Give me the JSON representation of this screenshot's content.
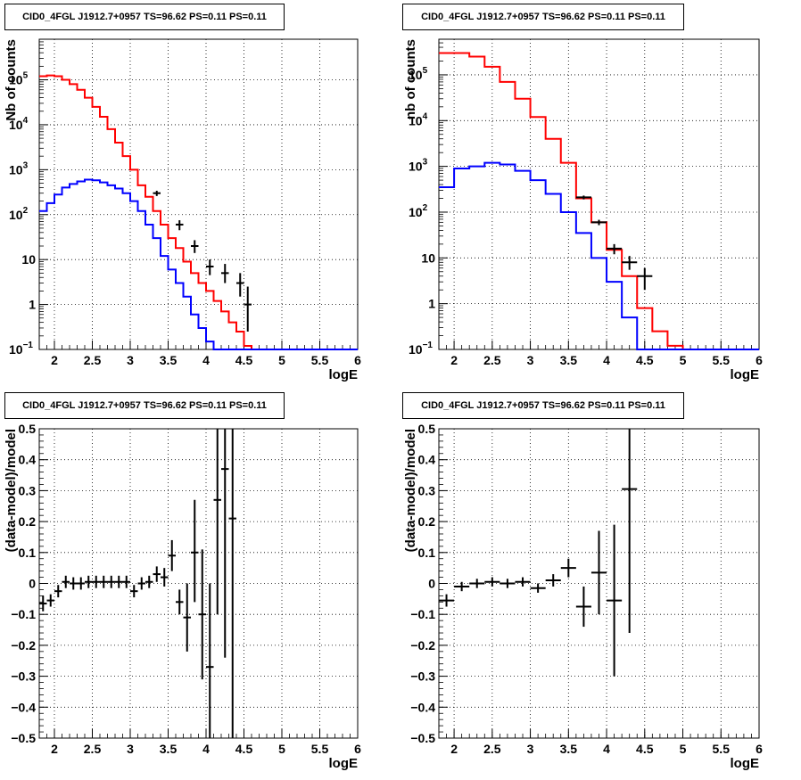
{
  "chart_data": [
    {
      "type": "line",
      "title": "CID0_4FGL J1912.7+0957 TS=96.62 PS=0.11 PS=0.11",
      "xlabel": "logE",
      "ylabel": "Nb of counts",
      "yscale": "log",
      "xlim": [
        1.8,
        6.0
      ],
      "ylim": [
        0.1,
        800000
      ],
      "grid": true,
      "xticks": [
        "2",
        "2.5",
        "3",
        "3.5",
        "4",
        "4.5",
        "5",
        "5.5",
        "6"
      ],
      "yticks": [
        {
          "v": 0.1,
          "label": "10",
          "sup": "−1"
        },
        {
          "v": 1,
          "label": "1",
          "sup": ""
        },
        {
          "v": 10,
          "label": "10",
          "sup": ""
        },
        {
          "v": 100,
          "label": "10",
          "sup": "2"
        },
        {
          "v": 1000,
          "label": "10",
          "sup": "3"
        },
        {
          "v": 10000,
          "label": "10",
          "sup": "4"
        },
        {
          "v": 100000,
          "label": "10",
          "sup": "5"
        }
      ],
      "series": [
        {
          "color": "#ff0000",
          "edges": [
            1.8,
            1.9,
            2.0,
            2.1,
            2.2,
            2.3,
            2.4,
            2.5,
            2.6,
            2.7,
            2.8,
            2.9,
            3.0,
            3.1,
            3.2,
            3.3,
            3.4,
            3.5,
            3.6,
            3.7,
            3.8,
            3.9,
            4.0,
            4.1,
            4.2,
            4.3,
            4.4,
            4.5,
            4.6,
            4.7,
            4.8,
            4.9,
            5.0,
            5.2,
            6.0
          ],
          "values": [
            120000,
            125000,
            120000,
            100000,
            80000,
            60000,
            40000,
            25000,
            15000,
            8000,
            4000,
            2000,
            1000,
            450,
            250,
            120,
            60,
            30,
            18,
            9,
            5,
            3,
            2,
            1.2,
            0.7,
            0.4,
            0.25,
            0.12,
            0.08,
            0.08,
            0.08,
            0.08,
            0.08,
            0.08
          ]
        },
        {
          "color": "#0000ff",
          "edges": [
            1.8,
            1.9,
            2.0,
            2.1,
            2.2,
            2.3,
            2.4,
            2.5,
            2.6,
            2.7,
            2.8,
            2.9,
            3.0,
            3.1,
            3.2,
            3.3,
            3.4,
            3.5,
            3.6,
            3.7,
            3.8,
            3.9,
            4.0,
            4.1,
            4.2,
            4.3,
            4.4,
            4.5,
            6.0
          ],
          "values": [
            120,
            180,
            280,
            400,
            480,
            550,
            600,
            580,
            520,
            450,
            380,
            300,
            200,
            120,
            60,
            30,
            12,
            6,
            3,
            1.5,
            0.6,
            0.3,
            0.15,
            0.08,
            0.08,
            0.08,
            0.08,
            0.08
          ]
        }
      ],
      "points": [
        {
          "x": 3.35,
          "y": 300,
          "ex": 0.05,
          "lo": 260,
          "hi": 340
        },
        {
          "x": 3.65,
          "y": 60,
          "ex": 0.05,
          "lo": 45,
          "hi": 75
        },
        {
          "x": 3.85,
          "y": 20,
          "ex": 0.05,
          "lo": 14,
          "hi": 27
        },
        {
          "x": 4.05,
          "y": 7,
          "ex": 0.05,
          "lo": 4.5,
          "hi": 10
        },
        {
          "x": 4.25,
          "y": 5,
          "ex": 0.05,
          "lo": 3,
          "hi": 8
        },
        {
          "x": 4.45,
          "y": 3,
          "ex": 0.05,
          "lo": 1.5,
          "hi": 5
        },
        {
          "x": 4.55,
          "y": 1,
          "ex": 0.05,
          "lo": 0.25,
          "hi": 2.5
        }
      ]
    },
    {
      "type": "line",
      "title": "CID0_4FGL J1912.7+0957 TS=96.62 PS=0.11 PS=0.11",
      "xlabel": "logE",
      "ylabel": "nb of counts",
      "yscale": "log",
      "xlim": [
        1.8,
        6.0
      ],
      "ylim": [
        0.1,
        600000
      ],
      "grid": true,
      "xticks": [
        "2",
        "2.5",
        "3",
        "3.5",
        "4",
        "4.5",
        "5",
        "5.5",
        "6"
      ],
      "yticks": [
        {
          "v": 0.1,
          "label": "10",
          "sup": "−1"
        },
        {
          "v": 1,
          "label": "1",
          "sup": ""
        },
        {
          "v": 10,
          "label": "10",
          "sup": ""
        },
        {
          "v": 100,
          "label": "10",
          "sup": "2"
        },
        {
          "v": 1000,
          "label": "10",
          "sup": "3"
        },
        {
          "v": 10000,
          "label": "10",
          "sup": "4"
        },
        {
          "v": 100000,
          "label": "10",
          "sup": "5"
        }
      ],
      "series": [
        {
          "color": "#ff0000",
          "edges": [
            1.8,
            2.2,
            2.4,
            2.6,
            2.8,
            3.0,
            3.2,
            3.4,
            3.6,
            3.8,
            4.0,
            4.2,
            4.4,
            4.6,
            4.8,
            5.0,
            5.2,
            5.4,
            6.0
          ],
          "values": [
            300000,
            250000,
            150000,
            70000,
            30000,
            12000,
            4000,
            1200,
            200,
            60,
            15,
            4,
            0.8,
            0.25,
            0.12,
            0.1,
            0.08,
            0.08
          ]
        },
        {
          "color": "#0000ff",
          "edges": [
            1.8,
            2.0,
            2.2,
            2.4,
            2.6,
            2.8,
            3.0,
            3.2,
            3.4,
            3.6,
            3.8,
            4.0,
            4.2,
            4.4,
            6.0
          ],
          "values": [
            350,
            900,
            1000,
            1200,
            1100,
            800,
            500,
            250,
            100,
            35,
            10,
            3,
            0.5,
            0.08
          ]
        }
      ],
      "points": [
        {
          "x": 3.7,
          "y": 210,
          "ex": 0.1,
          "lo": 190,
          "hi": 230
        },
        {
          "x": 3.9,
          "y": 60,
          "ex": 0.1,
          "lo": 52,
          "hi": 68
        },
        {
          "x": 4.1,
          "y": 16,
          "ex": 0.1,
          "lo": 12,
          "hi": 20
        },
        {
          "x": 4.3,
          "y": 8,
          "ex": 0.1,
          "lo": 5.5,
          "hi": 11
        },
        {
          "x": 4.5,
          "y": 4,
          "ex": 0.1,
          "lo": 2,
          "hi": 6
        }
      ]
    },
    {
      "type": "scatter",
      "title": "CID0_4FGL J1912.7+0957 TS=96.62 PS=0.11 PS=0.11",
      "xlabel": "logE",
      "ylabel": "(data-model)/model",
      "yscale": "linear",
      "xlim": [
        1.8,
        6.0
      ],
      "ylim": [
        -0.5,
        0.5
      ],
      "grid": true,
      "xticks": [
        "2",
        "2.5",
        "3",
        "3.5",
        "4",
        "4.5",
        "5",
        "5.5",
        "6"
      ],
      "yticks": [
        {
          "v": -0.5,
          "label": "−0.5",
          "sup": ""
        },
        {
          "v": -0.4,
          "label": "−0.4",
          "sup": ""
        },
        {
          "v": -0.3,
          "label": "−0.3",
          "sup": ""
        },
        {
          "v": -0.2,
          "label": "−0.2",
          "sup": ""
        },
        {
          "v": -0.1,
          "label": "−0.1",
          "sup": ""
        },
        {
          "v": 0,
          "label": "0",
          "sup": ""
        },
        {
          "v": 0.1,
          "label": "0.1",
          "sup": ""
        },
        {
          "v": 0.2,
          "label": "0.2",
          "sup": ""
        },
        {
          "v": 0.3,
          "label": "0.3",
          "sup": ""
        },
        {
          "v": 0.4,
          "label": "0.4",
          "sup": ""
        },
        {
          "v": 0.5,
          "label": "0.5",
          "sup": ""
        }
      ],
      "series": [],
      "points": [
        {
          "x": 1.85,
          "y": -0.065,
          "ex": 0.05,
          "lo": -0.09,
          "hi": -0.04
        },
        {
          "x": 1.95,
          "y": -0.055,
          "ex": 0.05,
          "lo": -0.075,
          "hi": -0.035
        },
        {
          "x": 2.05,
          "y": -0.025,
          "ex": 0.05,
          "lo": -0.045,
          "hi": -0.005
        },
        {
          "x": 2.15,
          "y": 0.005,
          "ex": 0.05,
          "lo": -0.015,
          "hi": 0.025
        },
        {
          "x": 2.25,
          "y": 0.0,
          "ex": 0.05,
          "lo": -0.02,
          "hi": 0.02
        },
        {
          "x": 2.35,
          "y": 0.0,
          "ex": 0.05,
          "lo": -0.02,
          "hi": 0.02
        },
        {
          "x": 2.45,
          "y": 0.005,
          "ex": 0.05,
          "lo": -0.015,
          "hi": 0.025
        },
        {
          "x": 2.55,
          "y": 0.005,
          "ex": 0.05,
          "lo": -0.015,
          "hi": 0.025
        },
        {
          "x": 2.65,
          "y": 0.005,
          "ex": 0.05,
          "lo": -0.015,
          "hi": 0.025
        },
        {
          "x": 2.75,
          "y": 0.005,
          "ex": 0.05,
          "lo": -0.015,
          "hi": 0.025
        },
        {
          "x": 2.85,
          "y": 0.005,
          "ex": 0.05,
          "lo": -0.015,
          "hi": 0.025
        },
        {
          "x": 2.95,
          "y": 0.005,
          "ex": 0.05,
          "lo": -0.015,
          "hi": 0.025
        },
        {
          "x": 3.05,
          "y": -0.025,
          "ex": 0.05,
          "lo": -0.045,
          "hi": -0.005
        },
        {
          "x": 3.15,
          "y": 0.0,
          "ex": 0.05,
          "lo": -0.02,
          "hi": 0.02
        },
        {
          "x": 3.25,
          "y": 0.005,
          "ex": 0.05,
          "lo": -0.015,
          "hi": 0.025
        },
        {
          "x": 3.35,
          "y": 0.03,
          "ex": 0.05,
          "lo": 0.005,
          "hi": 0.055
        },
        {
          "x": 3.45,
          "y": 0.02,
          "ex": 0.05,
          "lo": -0.01,
          "hi": 0.05
        },
        {
          "x": 3.55,
          "y": 0.09,
          "ex": 0.05,
          "lo": 0.04,
          "hi": 0.14
        },
        {
          "x": 3.65,
          "y": -0.06,
          "ex": 0.05,
          "lo": -0.1,
          "hi": -0.02
        },
        {
          "x": 3.75,
          "y": -0.11,
          "ex": 0.05,
          "lo": -0.22,
          "hi": 0.0
        },
        {
          "x": 3.85,
          "y": 0.1,
          "ex": 0.05,
          "lo": -0.06,
          "hi": 0.27
        },
        {
          "x": 3.95,
          "y": -0.1,
          "ex": 0.05,
          "lo": -0.31,
          "hi": 0.11
        },
        {
          "x": 4.05,
          "y": -0.27,
          "ex": 0.05,
          "lo": -0.5,
          "hi": 0.0
        },
        {
          "x": 4.15,
          "y": 0.27,
          "ex": 0.05,
          "lo": -0.1,
          "hi": 0.5
        },
        {
          "x": 4.25,
          "y": 0.37,
          "ex": 0.05,
          "lo": -0.24,
          "hi": 0.5
        },
        {
          "x": 4.35,
          "y": 0.21,
          "ex": 0.05,
          "lo": -0.5,
          "hi": 0.5
        }
      ]
    },
    {
      "type": "scatter",
      "title": "CID0_4FGL J1912.7+0957 TS=96.62 PS=0.11 PS=0.11",
      "xlabel": "logE",
      "ylabel": "(data-model)/model",
      "yscale": "linear",
      "xlim": [
        1.8,
        6.0
      ],
      "ylim": [
        -0.5,
        0.5
      ],
      "grid": true,
      "xticks": [
        "2",
        "2.5",
        "3",
        "3.5",
        "4",
        "4.5",
        "5",
        "5.5",
        "6"
      ],
      "yticks": [
        {
          "v": -0.5,
          "label": "−0.5",
          "sup": ""
        },
        {
          "v": -0.4,
          "label": "−0.4",
          "sup": ""
        },
        {
          "v": -0.3,
          "label": "−0.3",
          "sup": ""
        },
        {
          "v": -0.2,
          "label": "−0.2",
          "sup": ""
        },
        {
          "v": -0.1,
          "label": "−0.1",
          "sup": ""
        },
        {
          "v": 0,
          "label": "0",
          "sup": ""
        },
        {
          "v": 0.1,
          "label": "0.1",
          "sup": ""
        },
        {
          "v": 0.2,
          "label": "0.2",
          "sup": ""
        },
        {
          "v": 0.3,
          "label": "0.3",
          "sup": ""
        },
        {
          "v": 0.4,
          "label": "0.4",
          "sup": ""
        },
        {
          "v": 0.5,
          "label": "0.5",
          "sup": ""
        }
      ],
      "series": [],
      "points": [
        {
          "x": 1.9,
          "y": -0.055,
          "ex": 0.1,
          "lo": -0.075,
          "hi": -0.035
        },
        {
          "x": 2.1,
          "y": -0.01,
          "ex": 0.1,
          "lo": -0.025,
          "hi": 0.005
        },
        {
          "x": 2.3,
          "y": 0.0,
          "ex": 0.1,
          "lo": -0.015,
          "hi": 0.015
        },
        {
          "x": 2.5,
          "y": 0.005,
          "ex": 0.1,
          "lo": -0.01,
          "hi": 0.02
        },
        {
          "x": 2.7,
          "y": 0.0,
          "ex": 0.1,
          "lo": -0.015,
          "hi": 0.015
        },
        {
          "x": 2.9,
          "y": 0.005,
          "ex": 0.1,
          "lo": -0.01,
          "hi": 0.02
        },
        {
          "x": 3.1,
          "y": -0.015,
          "ex": 0.1,
          "lo": -0.03,
          "hi": 0.0
        },
        {
          "x": 3.3,
          "y": 0.01,
          "ex": 0.1,
          "lo": -0.01,
          "hi": 0.03
        },
        {
          "x": 3.5,
          "y": 0.05,
          "ex": 0.1,
          "lo": 0.02,
          "hi": 0.08
        },
        {
          "x": 3.7,
          "y": -0.075,
          "ex": 0.1,
          "lo": -0.14,
          "hi": -0.01
        },
        {
          "x": 3.9,
          "y": 0.035,
          "ex": 0.1,
          "lo": -0.1,
          "hi": 0.17
        },
        {
          "x": 4.1,
          "y": -0.055,
          "ex": 0.1,
          "lo": -0.3,
          "hi": 0.19
        },
        {
          "x": 4.3,
          "y": 0.305,
          "ex": 0.1,
          "lo": -0.16,
          "hi": 0.5
        }
      ]
    }
  ]
}
